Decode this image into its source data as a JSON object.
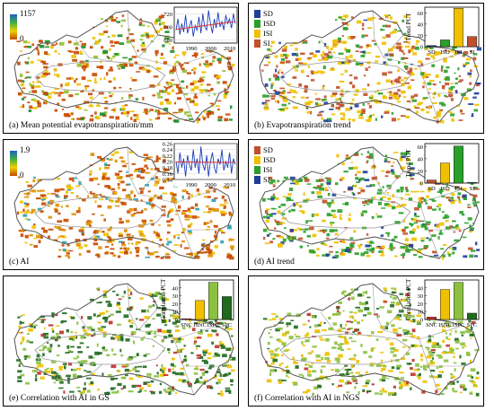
{
  "panels": [
    {
      "id": "a",
      "caption": "(a) Mean potential evapotranspiration/mm",
      "colorbar": {
        "max": "1157",
        "min": "0",
        "colors": [
          "#c04a00",
          "#f0d000",
          "#40b040",
          "#2060c0"
        ]
      },
      "inset": {
        "type": "line",
        "title": "",
        "xticks": [
          "1990",
          "2000",
          "2010"
        ],
        "yticks": [
          "680",
          "700",
          "720"
        ],
        "ylim": [
          675,
          730
        ],
        "x": [
          1982,
          1983,
          1984,
          1985,
          1986,
          1987,
          1988,
          1989,
          1990,
          1991,
          1992,
          1993,
          1994,
          1995,
          1996,
          1997,
          1998,
          1999,
          2000,
          2001,
          2002,
          2003,
          2004,
          2005,
          2006,
          2007,
          2008,
          2009,
          2010,
          2011,
          2012,
          2013
        ],
        "values": [
          695,
          712,
          688,
          705,
          692,
          718,
          690,
          700,
          710,
          685,
          702,
          695,
          715,
          690,
          720,
          700,
          695,
          725,
          705,
          690,
          712,
          698,
          722,
          700,
          708,
          695,
          718,
          705,
          712,
          698,
          720,
          705
        ],
        "trend": [
          696,
          708
        ],
        "line_color": "#1a3fb8",
        "trend_color": "#e03030"
      },
      "palette": [
        "#c84a00",
        "#f0c000",
        "#90c030",
        "#1a8f2a",
        "#1f5ab0"
      ]
    },
    {
      "id": "b",
      "caption": "(b) Evapotranspiration trend",
      "legend": [
        {
          "label": "SD",
          "color": "#1f3f99"
        },
        {
          "label": "ISD",
          "color": "#2aa02a"
        },
        {
          "label": "ISI",
          "color": "#f0c000"
        },
        {
          "label": "SI",
          "color": "#c0502a"
        }
      ],
      "inset": {
        "type": "bar",
        "ylabel": "Trend PCT",
        "yticks": [
          "0",
          "20",
          "40",
          "60"
        ],
        "ylim": [
          0,
          70
        ],
        "categories": [
          "SD",
          "ISD",
          "ISI",
          "SI"
        ],
        "values": [
          2,
          12,
          68,
          18
        ],
        "colors": [
          "#1f3f99",
          "#2aa02a",
          "#f0c000",
          "#c0502a"
        ]
      },
      "palette": [
        "#f0c000",
        "#c0502a",
        "#2aa02a",
        "#1f3f99"
      ]
    },
    {
      "id": "c",
      "caption": "(c) AI",
      "colorbar": {
        "max": "1.9",
        "min": "0",
        "colors": [
          "#c04a00",
          "#f0d000",
          "#40b040",
          "#2060c0"
        ]
      },
      "inset": {
        "type": "line",
        "title": "",
        "xticks": [
          "1990",
          "2000",
          "2010"
        ],
        "yticks": [
          "0.14",
          "0.16",
          "0.18",
          "0.20",
          "0.22",
          "0.24",
          "0.26"
        ],
        "ylim": [
          0.14,
          0.26
        ],
        "x": [
          1982,
          1983,
          1984,
          1985,
          1986,
          1987,
          1988,
          1989,
          1990,
          1991,
          1992,
          1993,
          1994,
          1995,
          1996,
          1997,
          1998,
          1999,
          2000,
          2001,
          2002,
          2003,
          2004,
          2005,
          2006,
          2007,
          2008,
          2009,
          2010,
          2011,
          2012,
          2013
        ],
        "values": [
          0.2,
          0.16,
          0.23,
          0.18,
          0.21,
          0.15,
          0.22,
          0.19,
          0.17,
          0.24,
          0.18,
          0.21,
          0.16,
          0.25,
          0.19,
          0.17,
          0.22,
          0.15,
          0.2,
          0.23,
          0.18,
          0.16,
          0.21,
          0.19,
          0.24,
          0.17,
          0.2,
          0.18,
          0.23,
          0.16,
          0.21,
          0.19
        ],
        "trend": [
          0.198,
          0.197
        ],
        "line_color": "#1a3fb8",
        "trend_color": "#e03030"
      },
      "palette": [
        "#c84a00",
        "#e09000",
        "#f0c000",
        "#2aa0b0",
        "#1f5ab0"
      ]
    },
    {
      "id": "d",
      "caption": "(d) AI trend",
      "legend": [
        {
          "label": "SD",
          "color": "#c0502a"
        },
        {
          "label": "ISD",
          "color": "#f0c000"
        },
        {
          "label": "ISI",
          "color": "#2aa02a"
        },
        {
          "label": "SI",
          "color": "#1f3f99"
        }
      ],
      "inset": {
        "type": "bar",
        "ylabel": "Trend PCT",
        "yticks": [
          "0",
          "20",
          "40",
          "60"
        ],
        "ylim": [
          0,
          65
        ],
        "categories": [
          "SD",
          "ISD",
          "ISI",
          "SI"
        ],
        "values": [
          5,
          33,
          61,
          1
        ],
        "colors": [
          "#c0502a",
          "#f0c000",
          "#2aa02a",
          "#1f3f99"
        ]
      },
      "palette": [
        "#2aa02a",
        "#f0c000",
        "#c0502a",
        "#1f3f99"
      ]
    },
    {
      "id": "e",
      "caption": "(e) Correlation with AI in GS",
      "inset": {
        "type": "bar",
        "ylabel": "Correlation PCT",
        "yticks": [
          "0",
          "10",
          "20",
          "30",
          "40"
        ],
        "ylim": [
          0,
          50
        ],
        "categories": [
          "SNC",
          "ISNC",
          "ISPC",
          "SPC"
        ],
        "values": [
          1,
          24,
          47,
          29
        ],
        "colors": [
          "#c0302a",
          "#f0c000",
          "#8cc040",
          "#1f6a1f"
        ]
      },
      "palette": [
        "#1f6a1f",
        "#8cc040",
        "#f0c000",
        "#c0302a"
      ]
    },
    {
      "id": "f",
      "caption": "(f) Correlation with AI in NGS",
      "inset": {
        "type": "bar",
        "ylabel": "Correlation PCT",
        "yticks": [
          "0",
          "10",
          "20",
          "30",
          "40"
        ],
        "ylim": [
          0,
          50
        ],
        "categories": [
          "SNC",
          "ISNC",
          "ISPC",
          "SPC"
        ],
        "values": [
          3,
          38,
          47,
          8
        ],
        "colors": [
          "#c0302a",
          "#f0c000",
          "#8cc040",
          "#1f6a1f"
        ]
      },
      "palette": [
        "#8cc040",
        "#f0c000",
        "#1f6a1f",
        "#c0302a"
      ]
    }
  ]
}
